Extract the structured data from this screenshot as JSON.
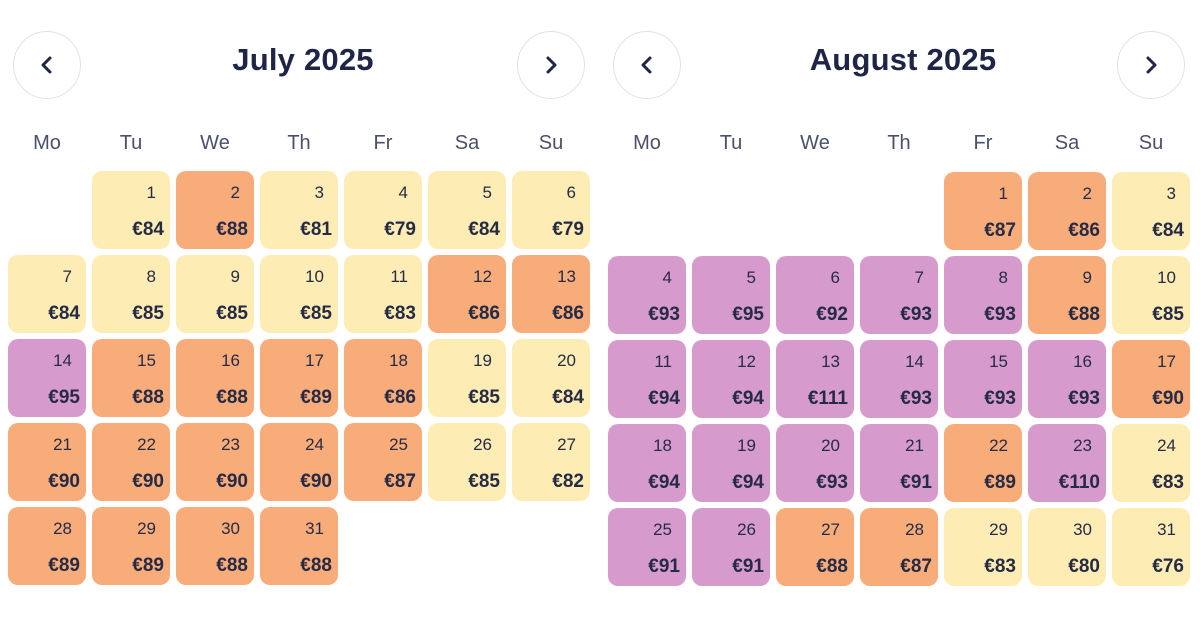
{
  "weekdays": [
    "Mo",
    "Tu",
    "We",
    "Th",
    "Fr",
    "Sa",
    "Su"
  ],
  "colors": {
    "level_low": "#fdedb5",
    "level_mid": "#f7ac79",
    "level_high": "#d69bcc",
    "text": "#1f2547"
  },
  "months": [
    {
      "title": "July 2025",
      "start_weekday_index": 1,
      "days": [
        {
          "day": "1",
          "price": "€84",
          "level": "low"
        },
        {
          "day": "2",
          "price": "€88",
          "level": "mid"
        },
        {
          "day": "3",
          "price": "€81",
          "level": "low"
        },
        {
          "day": "4",
          "price": "€79",
          "level": "low"
        },
        {
          "day": "5",
          "price": "€84",
          "level": "low"
        },
        {
          "day": "6",
          "price": "€79",
          "level": "low"
        },
        {
          "day": "7",
          "price": "€84",
          "level": "low"
        },
        {
          "day": "8",
          "price": "€85",
          "level": "low"
        },
        {
          "day": "9",
          "price": "€85",
          "level": "low"
        },
        {
          "day": "10",
          "price": "€85",
          "level": "low"
        },
        {
          "day": "11",
          "price": "€83",
          "level": "low"
        },
        {
          "day": "12",
          "price": "€86",
          "level": "mid"
        },
        {
          "day": "13",
          "price": "€86",
          "level": "mid"
        },
        {
          "day": "14",
          "price": "€95",
          "level": "high"
        },
        {
          "day": "15",
          "price": "€88",
          "level": "mid"
        },
        {
          "day": "16",
          "price": "€88",
          "level": "mid"
        },
        {
          "day": "17",
          "price": "€89",
          "level": "mid"
        },
        {
          "day": "18",
          "price": "€86",
          "level": "mid"
        },
        {
          "day": "19",
          "price": "€85",
          "level": "low"
        },
        {
          "day": "20",
          "price": "€84",
          "level": "low"
        },
        {
          "day": "21",
          "price": "€90",
          "level": "mid"
        },
        {
          "day": "22",
          "price": "€90",
          "level": "mid"
        },
        {
          "day": "23",
          "price": "€90",
          "level": "mid"
        },
        {
          "day": "24",
          "price": "€90",
          "level": "mid"
        },
        {
          "day": "25",
          "price": "€87",
          "level": "mid"
        },
        {
          "day": "26",
          "price": "€85",
          "level": "low"
        },
        {
          "day": "27",
          "price": "€82",
          "level": "low"
        },
        {
          "day": "28",
          "price": "€89",
          "level": "mid"
        },
        {
          "day": "29",
          "price": "€89",
          "level": "mid"
        },
        {
          "day": "30",
          "price": "€88",
          "level": "mid"
        },
        {
          "day": "31",
          "price": "€88",
          "level": "mid"
        }
      ]
    },
    {
      "title": "August 2025",
      "start_weekday_index": 4,
      "days": [
        {
          "day": "1",
          "price": "€87",
          "level": "mid"
        },
        {
          "day": "2",
          "price": "€86",
          "level": "mid"
        },
        {
          "day": "3",
          "price": "€84",
          "level": "low"
        },
        {
          "day": "4",
          "price": "€93",
          "level": "high"
        },
        {
          "day": "5",
          "price": "€95",
          "level": "high"
        },
        {
          "day": "6",
          "price": "€92",
          "level": "high"
        },
        {
          "day": "7",
          "price": "€93",
          "level": "high"
        },
        {
          "day": "8",
          "price": "€93",
          "level": "high"
        },
        {
          "day": "9",
          "price": "€88",
          "level": "mid"
        },
        {
          "day": "10",
          "price": "€85",
          "level": "low"
        },
        {
          "day": "11",
          "price": "€94",
          "level": "high"
        },
        {
          "day": "12",
          "price": "€94",
          "level": "high"
        },
        {
          "day": "13",
          "price": "€111",
          "level": "high"
        },
        {
          "day": "14",
          "price": "€93",
          "level": "high"
        },
        {
          "day": "15",
          "price": "€93",
          "level": "high"
        },
        {
          "day": "16",
          "price": "€93",
          "level": "high"
        },
        {
          "day": "17",
          "price": "€90",
          "level": "mid"
        },
        {
          "day": "18",
          "price": "€94",
          "level": "high"
        },
        {
          "day": "19",
          "price": "€94",
          "level": "high"
        },
        {
          "day": "20",
          "price": "€93",
          "level": "high"
        },
        {
          "day": "21",
          "price": "€91",
          "level": "high"
        },
        {
          "day": "22",
          "price": "€89",
          "level": "mid"
        },
        {
          "day": "23",
          "price": "€110",
          "level": "high"
        },
        {
          "day": "24",
          "price": "€83",
          "level": "low"
        },
        {
          "day": "25",
          "price": "€91",
          "level": "high"
        },
        {
          "day": "26",
          "price": "€91",
          "level": "high"
        },
        {
          "day": "27",
          "price": "€88",
          "level": "mid"
        },
        {
          "day": "28",
          "price": "€87",
          "level": "mid"
        },
        {
          "day": "29",
          "price": "€83",
          "level": "low"
        },
        {
          "day": "30",
          "price": "€80",
          "level": "low"
        },
        {
          "day": "31",
          "price": "€76",
          "level": "low"
        }
      ]
    }
  ]
}
